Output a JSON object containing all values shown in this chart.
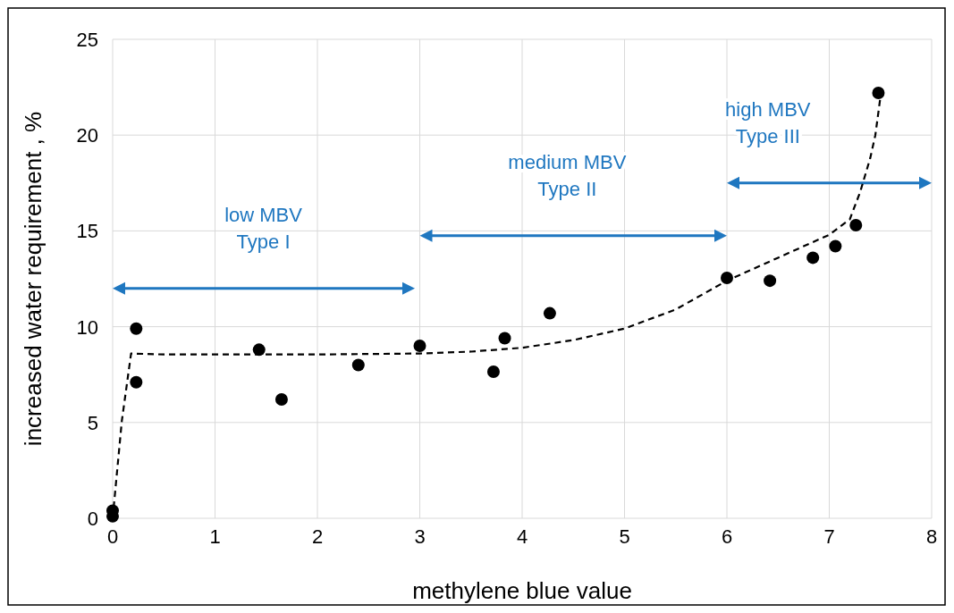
{
  "chart_data": {
    "type": "scatter",
    "xlabel": "methylene blue value",
    "ylabel": "increased water requirement , %",
    "xlim": [
      0,
      8
    ],
    "xticks": [
      0,
      1,
      2,
      3,
      4,
      5,
      6,
      7,
      8
    ],
    "ylim": [
      0,
      25
    ],
    "yticks": [
      0,
      5,
      10,
      15,
      20,
      25
    ],
    "grid": true,
    "series": [
      {
        "type": "scatter",
        "color": "#000000",
        "marker": "circle",
        "x": [
          0,
          0,
          0.23,
          0.23,
          1.43,
          1.65,
          2.4,
          3.0,
          3.72,
          3.83,
          4.27,
          6.0,
          6.42,
          6.84,
          7.06,
          7.26,
          7.48
        ],
        "values": [
          0.4,
          0.1,
          9.9,
          7.1,
          8.8,
          6.2,
          8.0,
          9.0,
          7.65,
          9.4,
          10.7,
          12.55,
          12.4,
          13.6,
          14.2,
          15.3,
          22.2
        ]
      },
      {
        "type": "line",
        "color": "#000000",
        "line_style": "dashed",
        "marker": "none",
        "x": [
          0,
          0.09,
          0.18,
          0.5,
          1,
          2,
          3,
          3.5,
          4,
          4.5,
          5,
          5.5,
          6,
          6.5,
          7,
          7.2,
          7.3,
          7.4,
          7.45,
          7.5
        ],
        "values": [
          0,
          5.1,
          8.6,
          8.55,
          8.55,
          8.55,
          8.6,
          8.7,
          8.9,
          9.3,
          9.9,
          10.9,
          12.4,
          13.6,
          14.8,
          15.6,
          17,
          18.8,
          20,
          22
        ]
      }
    ],
    "annotations": [
      "low MBV\nType I",
      "medium MBV\nType II",
      "high MBV\nType III"
    ]
  }
}
